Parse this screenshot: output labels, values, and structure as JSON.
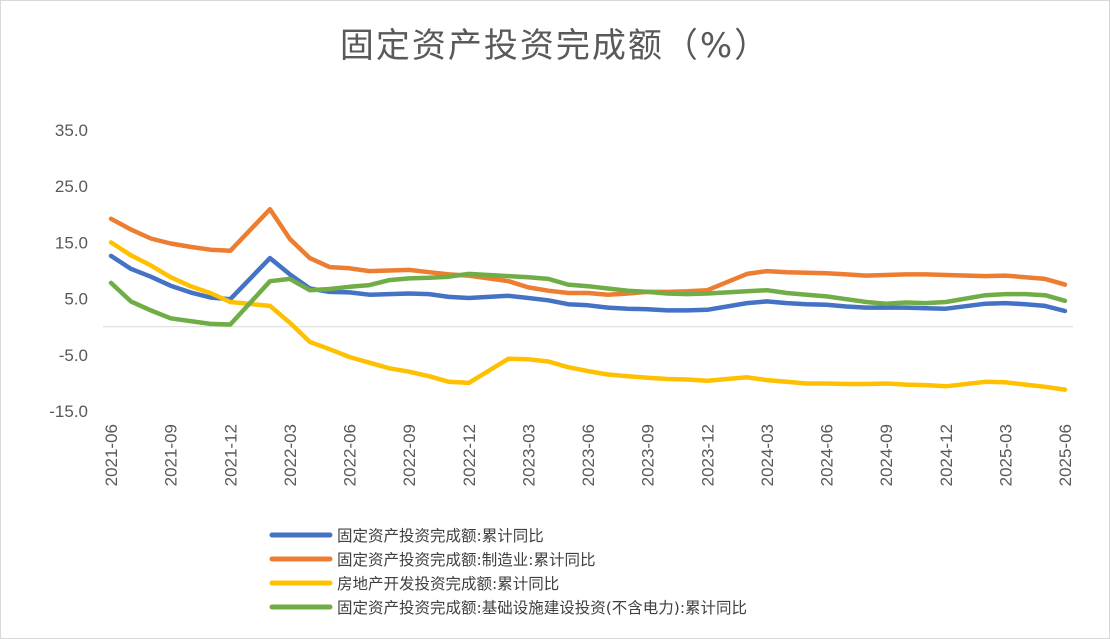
{
  "chart_data": {
    "type": "line",
    "title": "固定资产投资完成额（%）",
    "xlabel": "",
    "ylabel": "",
    "ylim": [
      -15,
      35
    ],
    "yticks": [
      -15,
      -5,
      5,
      15,
      25,
      35
    ],
    "ytick_labels": [
      "-15.0",
      "-5.0",
      "5.0",
      "15.0",
      "25.0",
      "35.0"
    ],
    "x": [
      "2021-06",
      "2021-07",
      "2021-08",
      "2021-09",
      "2021-10",
      "2021-11",
      "2021-12",
      "2022-02",
      "2022-03",
      "2022-04",
      "2022-05",
      "2022-06",
      "2022-07",
      "2022-08",
      "2022-09",
      "2022-10",
      "2022-11",
      "2022-12",
      "2023-02",
      "2023-03",
      "2023-04",
      "2023-05",
      "2023-06",
      "2023-07",
      "2023-08",
      "2023-09",
      "2023-10",
      "2023-11",
      "2023-12",
      "2024-02",
      "2024-03",
      "2024-04",
      "2024-05",
      "2024-06",
      "2024-07",
      "2024-08",
      "2024-09",
      "2024-10",
      "2024-11",
      "2024-12",
      "2025-02",
      "2025-03",
      "2025-04",
      "2025-05",
      "2025-06"
    ],
    "xtick_labels": [
      "2021-06",
      "2021-09",
      "2021-12",
      "2022-03",
      "2022-06",
      "2022-09",
      "2022-12",
      "2023-03",
      "2023-06",
      "2023-09",
      "2023-12",
      "2024-03",
      "2024-06",
      "2024-09",
      "2024-12",
      "2025-03",
      "2025-06"
    ],
    "grid": false,
    "legend_position": "bottom",
    "series": [
      {
        "name": "固定资产投资完成额:累计同比",
        "color": "#4472C4",
        "values": [
          12.6,
          10.3,
          8.9,
          7.3,
          6.1,
          5.2,
          4.9,
          12.2,
          9.3,
          6.8,
          6.2,
          6.1,
          5.7,
          5.8,
          5.9,
          5.8,
          5.3,
          5.1,
          5.5,
          5.1,
          4.7,
          4.0,
          3.8,
          3.4,
          3.2,
          3.1,
          2.9,
          2.9,
          3.0,
          4.2,
          4.5,
          4.2,
          4.0,
          3.9,
          3.6,
          3.4,
          3.4,
          3.4,
          3.3,
          3.2,
          4.1,
          4.2,
          4.0,
          3.7,
          2.8
        ]
      },
      {
        "name": "固定资产投资完成额:制造业:累计同比",
        "color": "#ED7D31",
        "values": [
          19.2,
          17.3,
          15.7,
          14.8,
          14.2,
          13.7,
          13.5,
          20.9,
          15.6,
          12.2,
          10.6,
          10.4,
          9.9,
          10.0,
          10.1,
          9.7,
          9.3,
          9.1,
          8.1,
          7.0,
          6.4,
          6.0,
          6.0,
          5.7,
          5.9,
          6.2,
          6.2,
          6.3,
          6.5,
          9.4,
          9.9,
          9.7,
          9.6,
          9.5,
          9.3,
          9.1,
          9.2,
          9.3,
          9.3,
          9.2,
          9.0,
          9.1,
          8.8,
          8.5,
          7.5
        ]
      },
      {
        "name": "房地产开发投资完成额:累计同比",
        "color": "#FFC000",
        "values": [
          15.0,
          12.7,
          10.9,
          8.8,
          7.2,
          6.0,
          4.4,
          3.7,
          0.7,
          -2.7,
          -4.0,
          -5.4,
          -6.4,
          -7.4,
          -8.0,
          -8.8,
          -9.8,
          -10.0,
          -5.7,
          -5.8,
          -6.2,
          -7.2,
          -7.9,
          -8.5,
          -8.8,
          -9.1,
          -9.3,
          -9.4,
          -9.6,
          -9.0,
          -9.5,
          -9.8,
          -10.1,
          -10.1,
          -10.2,
          -10.2,
          -10.1,
          -10.3,
          -10.4,
          -10.6,
          -9.8,
          -9.9,
          -10.3,
          -10.7,
          -11.2
        ]
      },
      {
        "name": "固定资产投资完成额:基础设施建设投资(不含电力):累计同比",
        "color": "#70AD47",
        "values": [
          7.8,
          4.5,
          2.9,
          1.5,
          1.0,
          0.5,
          0.4,
          8.1,
          8.5,
          6.5,
          6.7,
          7.1,
          7.4,
          8.3,
          8.6,
          8.7,
          8.9,
          9.4,
          9.0,
          8.8,
          8.5,
          7.5,
          7.2,
          6.8,
          6.4,
          6.2,
          5.9,
          5.8,
          5.9,
          6.3,
          6.5,
          6.0,
          5.7,
          5.4,
          4.9,
          4.4,
          4.1,
          4.3,
          4.2,
          4.4,
          5.6,
          5.8,
          5.8,
          5.6,
          4.6
        ]
      }
    ]
  }
}
